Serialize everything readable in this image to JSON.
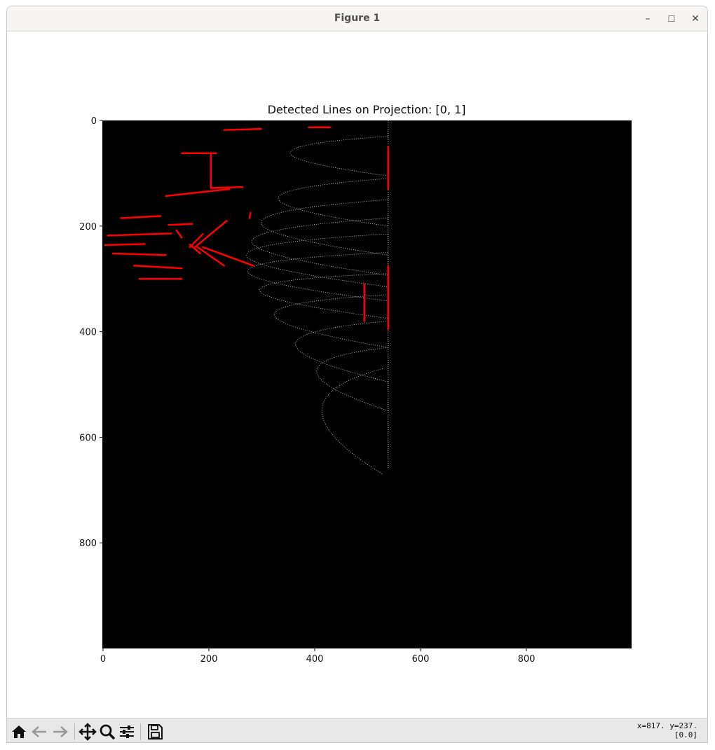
{
  "window": {
    "title": "Figure 1"
  },
  "window_controls": {
    "minimize": "–",
    "maximize": "☐",
    "close": "✕"
  },
  "toolbar": {
    "buttons": [
      "home-icon",
      "back-icon",
      "forward-icon",
      "pan-icon",
      "zoom-icon",
      "configure-subplots-icon",
      "save-icon"
    ],
    "coords_line1": "x=817. y=237.",
    "coords_line2": "[0.0]"
  },
  "colors": {
    "image_bg": "#000000",
    "detected_line": "#ff0000",
    "point_cloud": "#ffffff"
  },
  "chart_data": {
    "type": "image",
    "title": "Detected Lines on Projection: [0, 1]",
    "xlabel": "",
    "ylabel": "",
    "xlim": [
      0,
      1000
    ],
    "ylim": [
      1000,
      0
    ],
    "xticks": [
      0,
      200,
      400,
      600,
      800
    ],
    "yticks": [
      0,
      200,
      400,
      600,
      800
    ],
    "grid": false,
    "point_cloud_arcs": [
      {
        "x1": 540,
        "y1": 30,
        "xmin": 170,
        "yc": 55,
        "r": 25
      },
      {
        "x1": 540,
        "y1": 110,
        "xmin": 125,
        "yc": 140,
        "r": 30
      },
      {
        "x1": 540,
        "y1": 150,
        "xmin": 60,
        "yc": 185,
        "r": 35
      },
      {
        "x1": 540,
        "y1": 185,
        "xmin": 25,
        "yc": 220,
        "r": 38
      },
      {
        "x1": 540,
        "y1": 215,
        "xmin": 5,
        "yc": 245,
        "r": 40
      },
      {
        "x1": 540,
        "y1": 250,
        "xmin": 10,
        "yc": 275,
        "r": 42
      },
      {
        "x1": 540,
        "y1": 290,
        "xmin": 55,
        "yc": 310,
        "r": 45
      },
      {
        "x1": 540,
        "y1": 330,
        "xmin": 110,
        "yc": 355,
        "r": 50
      },
      {
        "x1": 540,
        "y1": 380,
        "xmin": 190,
        "yc": 410,
        "r": 55
      },
      {
        "x1": 540,
        "y1": 430,
        "xmin": 270,
        "yc": 460,
        "r": 60
      },
      {
        "x1": 530,
        "y1": 470,
        "xmin": 300,
        "yc": 530,
        "r": 80
      }
    ],
    "detected_lines": [
      {
        "x1": 230,
        "y1": 18,
        "x2": 300,
        "y2": 16
      },
      {
        "x1": 390,
        "y1": 13,
        "x2": 430,
        "y2": 13
      },
      {
        "x1": 540,
        "y1": 50,
        "x2": 540,
        "y2": 130
      },
      {
        "x1": 150,
        "y1": 62,
        "x2": 215,
        "y2": 62
      },
      {
        "x1": 205,
        "y1": 62,
        "x2": 205,
        "y2": 128
      },
      {
        "x1": 205,
        "y1": 128,
        "x2": 265,
        "y2": 126
      },
      {
        "x1": 120,
        "y1": 143,
        "x2": 240,
        "y2": 130
      },
      {
        "x1": 35,
        "y1": 185,
        "x2": 110,
        "y2": 181
      },
      {
        "x1": 280,
        "y1": 175,
        "x2": 278,
        "y2": 185
      },
      {
        "x1": 125,
        "y1": 198,
        "x2": 170,
        "y2": 196
      },
      {
        "x1": 10,
        "y1": 218,
        "x2": 130,
        "y2": 214
      },
      {
        "x1": 140,
        "y1": 208,
        "x2": 150,
        "y2": 222
      },
      {
        "x1": 165,
        "y1": 240,
        "x2": 190,
        "y2": 215
      },
      {
        "x1": 175,
        "y1": 240,
        "x2": 235,
        "y2": 190
      },
      {
        "x1": 165,
        "y1": 235,
        "x2": 185,
        "y2": 252
      },
      {
        "x1": 180,
        "y1": 240,
        "x2": 230,
        "y2": 275
      },
      {
        "x1": 190,
        "y1": 240,
        "x2": 285,
        "y2": 275
      },
      {
        "x1": 5,
        "y1": 236,
        "x2": 80,
        "y2": 234
      },
      {
        "x1": 20,
        "y1": 252,
        "x2": 120,
        "y2": 255
      },
      {
        "x1": 60,
        "y1": 275,
        "x2": 150,
        "y2": 280
      },
      {
        "x1": 70,
        "y1": 300,
        "x2": 150,
        "y2": 300
      },
      {
        "x1": 540,
        "y1": 275,
        "x2": 540,
        "y2": 395
      },
      {
        "x1": 495,
        "y1": 310,
        "x2": 495,
        "y2": 380
      }
    ]
  }
}
